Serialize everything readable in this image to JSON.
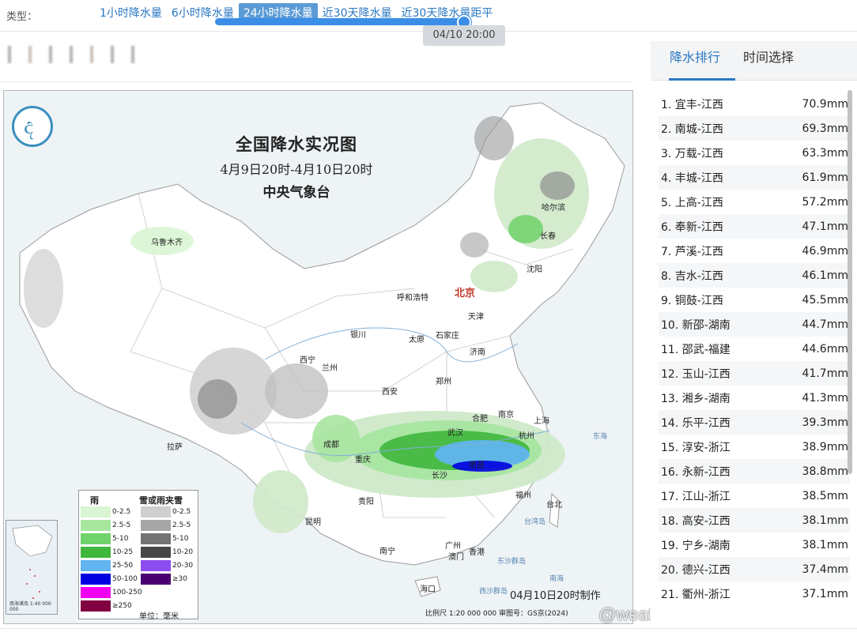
{
  "typebar": {
    "label": "类型：",
    "options": [
      "1小时降水量",
      "6小时降水量",
      "24小时降水量",
      "近30天降水量",
      "近30天降水量距平"
    ],
    "active_index": 2
  },
  "time_slider": {
    "tooltip": "04/10 20:00",
    "progress": 1.0
  },
  "map": {
    "title": "全国降水实况图",
    "subtitle": "4月9日20时-4月10日20时",
    "agency": "中央气象台",
    "capital": "北京",
    "cities": [
      "乌鲁木齐",
      "哈尔滨",
      "长春",
      "沈阳",
      "呼和浩特",
      "天津",
      "石家庄",
      "太原",
      "银川",
      "济南",
      "西宁",
      "兰州",
      "郑州",
      "西安",
      "合肥",
      "南京",
      "上海",
      "拉萨",
      "成都",
      "武汉",
      "杭州",
      "重庆",
      "南昌",
      "长沙",
      "贵阳",
      "福州",
      "台北",
      "昆明",
      "广州",
      "香港",
      "澳门",
      "南宁",
      "海口"
    ],
    "seas": [
      "东海",
      "台湾岛",
      "东沙群岛",
      "西沙群岛",
      "南海"
    ],
    "made": "04月10日20时制作",
    "scale": "比例尺 1:20 000 000    审图号：GS京(2024)",
    "inset_caption": "南海诸岛 1:40 000 000",
    "legend": {
      "rain_title": "雨",
      "snow_title": "雪或雨夹雪",
      "unit": "单位：毫米",
      "rain": [
        {
          "label": "0-2.5",
          "color": "#d9f5d3"
        },
        {
          "label": "2.5-5",
          "color": "#a8e6a0"
        },
        {
          "label": "5-10",
          "color": "#6fd26a"
        },
        {
          "label": "10-25",
          "color": "#3fb63c"
        },
        {
          "label": "25-50",
          "color": "#60b4ef"
        },
        {
          "label": "50-100",
          "color": "#0000e0"
        },
        {
          "label": "100-250",
          "color": "#f000f0"
        },
        {
          "label": "≥250",
          "color": "#800040"
        }
      ],
      "snow": [
        {
          "label": "0-2.5",
          "color": "#cfcfcf"
        },
        {
          "label": "2.5-5",
          "color": "#a6a6a6"
        },
        {
          "label": "5-10",
          "color": "#737373"
        },
        {
          "label": "10-20",
          "color": "#474747"
        },
        {
          "label": "20-30",
          "color": "#8c4cf0"
        },
        {
          "label": "≥30",
          "color": "#4a0070"
        }
      ]
    }
  },
  "watermark": "@weatherman_信欣",
  "panel": {
    "tabs": [
      "降水排行",
      "时间选择"
    ],
    "active_tab": 0,
    "ranking": [
      {
        "name": "1. 宜丰-江西",
        "value": "70.9mm"
      },
      {
        "name": "2. 南城-江西",
        "value": "69.3mm"
      },
      {
        "name": "3. 万载-江西",
        "value": "63.3mm"
      },
      {
        "name": "4. 丰城-江西",
        "value": "61.9mm"
      },
      {
        "name": "5. 上高-江西",
        "value": "57.2mm"
      },
      {
        "name": "6. 奉新-江西",
        "value": "47.1mm"
      },
      {
        "name": "7. 芦溪-江西",
        "value": "46.9mm"
      },
      {
        "name": "8. 吉水-江西",
        "value": "46.1mm"
      },
      {
        "name": "9. 铜鼓-江西",
        "value": "45.5mm"
      },
      {
        "name": "10. 新邵-湖南",
        "value": "44.7mm"
      },
      {
        "name": "11. 邵武-福建",
        "value": "44.6mm"
      },
      {
        "name": "12. 玉山-江西",
        "value": "41.7mm"
      },
      {
        "name": "13. 湘乡-湖南",
        "value": "41.3mm"
      },
      {
        "name": "14. 乐平-江西",
        "value": "39.3mm"
      },
      {
        "name": "15. 淳安-浙江",
        "value": "38.9mm"
      },
      {
        "name": "16. 永新-江西",
        "value": "38.8mm"
      },
      {
        "name": "17. 江山-浙江",
        "value": "38.5mm"
      },
      {
        "name": "18. 高安-江西",
        "value": "38.1mm"
      },
      {
        "name": "19. 宁乡-湖南",
        "value": "38.1mm"
      },
      {
        "name": "20. 德兴-江西",
        "value": "37.4mm"
      },
      {
        "name": "21. 衢州-浙江",
        "value": "37.1mm"
      }
    ]
  }
}
